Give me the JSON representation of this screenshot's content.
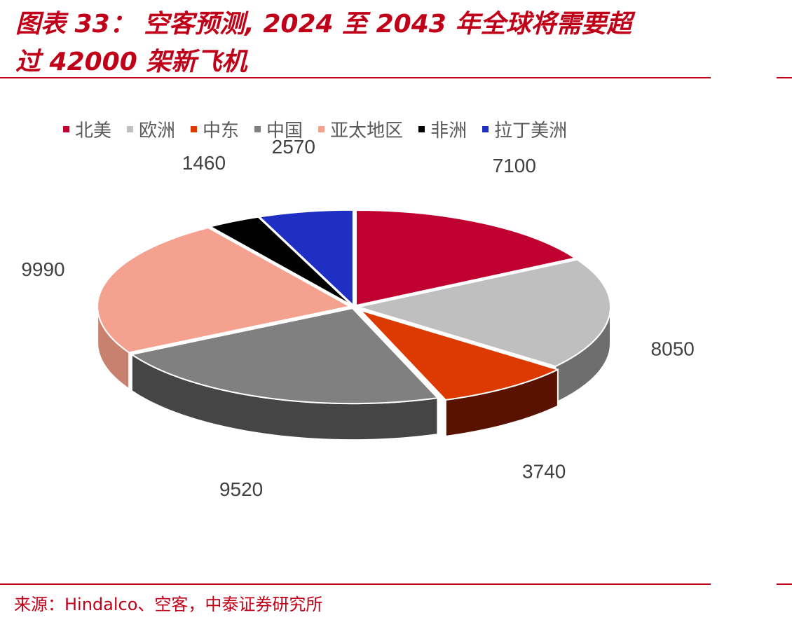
{
  "header": {
    "title_line1": "图表 33： 空客预测, 2024 至 2043 年全球将需要超",
    "title_line2": "过 42000 架新飞机"
  },
  "chart_data": {
    "type": "pie",
    "style": "3d-exploded-tilted",
    "categories": [
      "北美",
      "欧洲",
      "中东",
      "中国",
      "亚太地区",
      "非洲",
      "拉丁美洲"
    ],
    "values": [
      7100,
      8050,
      3740,
      9520,
      9990,
      1460,
      2570
    ],
    "colors": [
      "#c00030",
      "#bfbfbf",
      "#dc3a00",
      "#808080",
      "#f4a190",
      "#000000",
      "#1f2fc4"
    ],
    "side_colors": [
      "#7a001c",
      "#6e6e6e",
      "#5a1200",
      "#454545",
      "#c8806f",
      "#000000",
      "#101a80"
    ],
    "legend_position": "top",
    "data_labels": true
  },
  "footer": {
    "source": "来源：Hindalco、空客，中泰证券研究所"
  }
}
